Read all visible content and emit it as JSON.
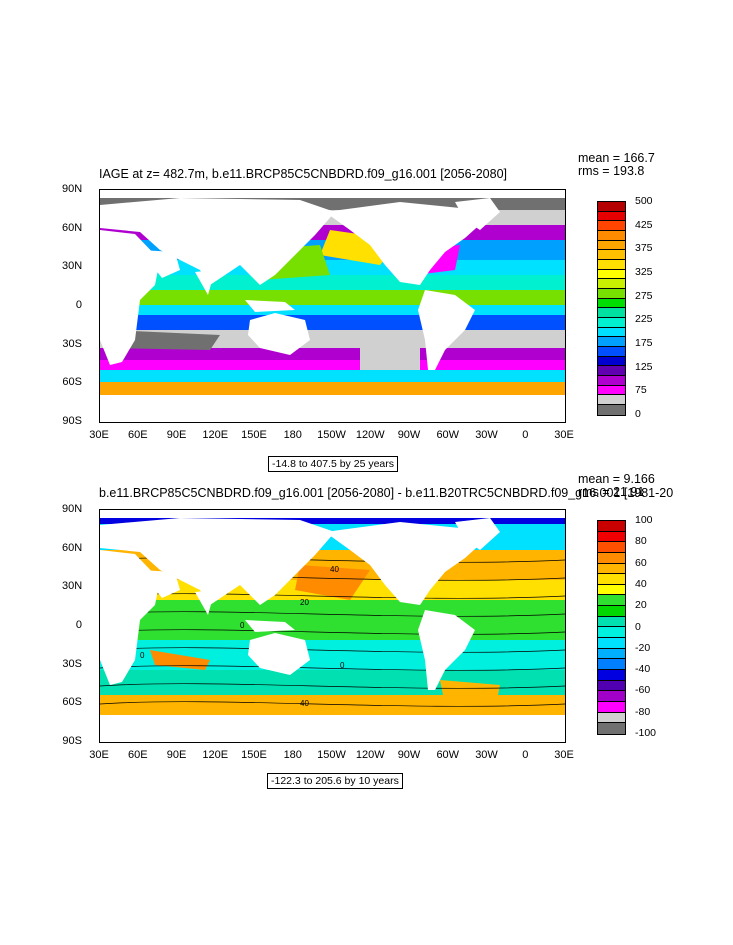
{
  "chart_data": [
    {
      "type": "heatmap",
      "title": "IAGE at z= 482.7m, b.e11.BRCP85C5CNBDRD.f09_g16.001 [2056-2080]",
      "stats": {
        "mean": "mean = 166.7",
        "rms": "rms = 193.8"
      },
      "yticks": [
        "90N",
        "60N",
        "30N",
        "0",
        "30S",
        "60S",
        "90S"
      ],
      "xticks": [
        "30E",
        "60E",
        "90E",
        "120E",
        "150E",
        "180",
        "150W",
        "120W",
        "90W",
        "60W",
        "30W",
        "0",
        "30E"
      ],
      "range_label": "-14.8 to 407.5 by 25 years",
      "colorbar": {
        "labels": [
          "500",
          "425",
          "375",
          "325",
          "275",
          "225",
          "175",
          "125",
          "75",
          "0"
        ],
        "colors": [
          "#b40000",
          "#e60000",
          "#ff4500",
          "#ff8c00",
          "#ffa500",
          "#ffc000",
          "#ffe000",
          "#ffff00",
          "#c8f000",
          "#78e000",
          "#00dd00",
          "#00e0a0",
          "#00f0d0",
          "#00e0ff",
          "#00a0ff",
          "#0050ff",
          "#0000d0",
          "#6000b0",
          "#b000d0",
          "#ff00ff",
          "#d0d0d0",
          "#707070"
        ]
      }
    },
    {
      "type": "heatmap",
      "title": "b.e11.BRCP85C5CNBDRD.f09_g16.001 [2056-2080] - b.e11.B20TRC5CNBDRD.f09_g16.001 [1981-20",
      "stats": {
        "mean": "mean = 9.166",
        "rms": "rms = 21.91"
      },
      "yticks": [
        "90N",
        "60N",
        "30N",
        "0",
        "30S",
        "60S",
        "90S"
      ],
      "xticks": [
        "30E",
        "60E",
        "90E",
        "120E",
        "150E",
        "180",
        "150W",
        "120W",
        "90W",
        "60W",
        "30W",
        "0",
        "30E"
      ],
      "range_label": "-122.3 to 205.6 by 10 years",
      "contour_labels": [
        "40",
        "20",
        "0",
        "0",
        "0",
        "40"
      ],
      "colorbar": {
        "labels": [
          "100",
          "80",
          "60",
          "40",
          "20",
          "0",
          "-20",
          "-40",
          "-60",
          "-80",
          "-100"
        ],
        "colors": [
          "#c80000",
          "#f00000",
          "#ff5000",
          "#ff8c00",
          "#ffb400",
          "#ffe000",
          "#ffff00",
          "#30e030",
          "#00d800",
          "#00e0b0",
          "#00f0e0",
          "#00e0ff",
          "#00b0ff",
          "#0080ff",
          "#0000e0",
          "#5000b0",
          "#a000c8",
          "#ff00ff",
          "#d0d0d0",
          "#707070"
        ]
      }
    }
  ]
}
